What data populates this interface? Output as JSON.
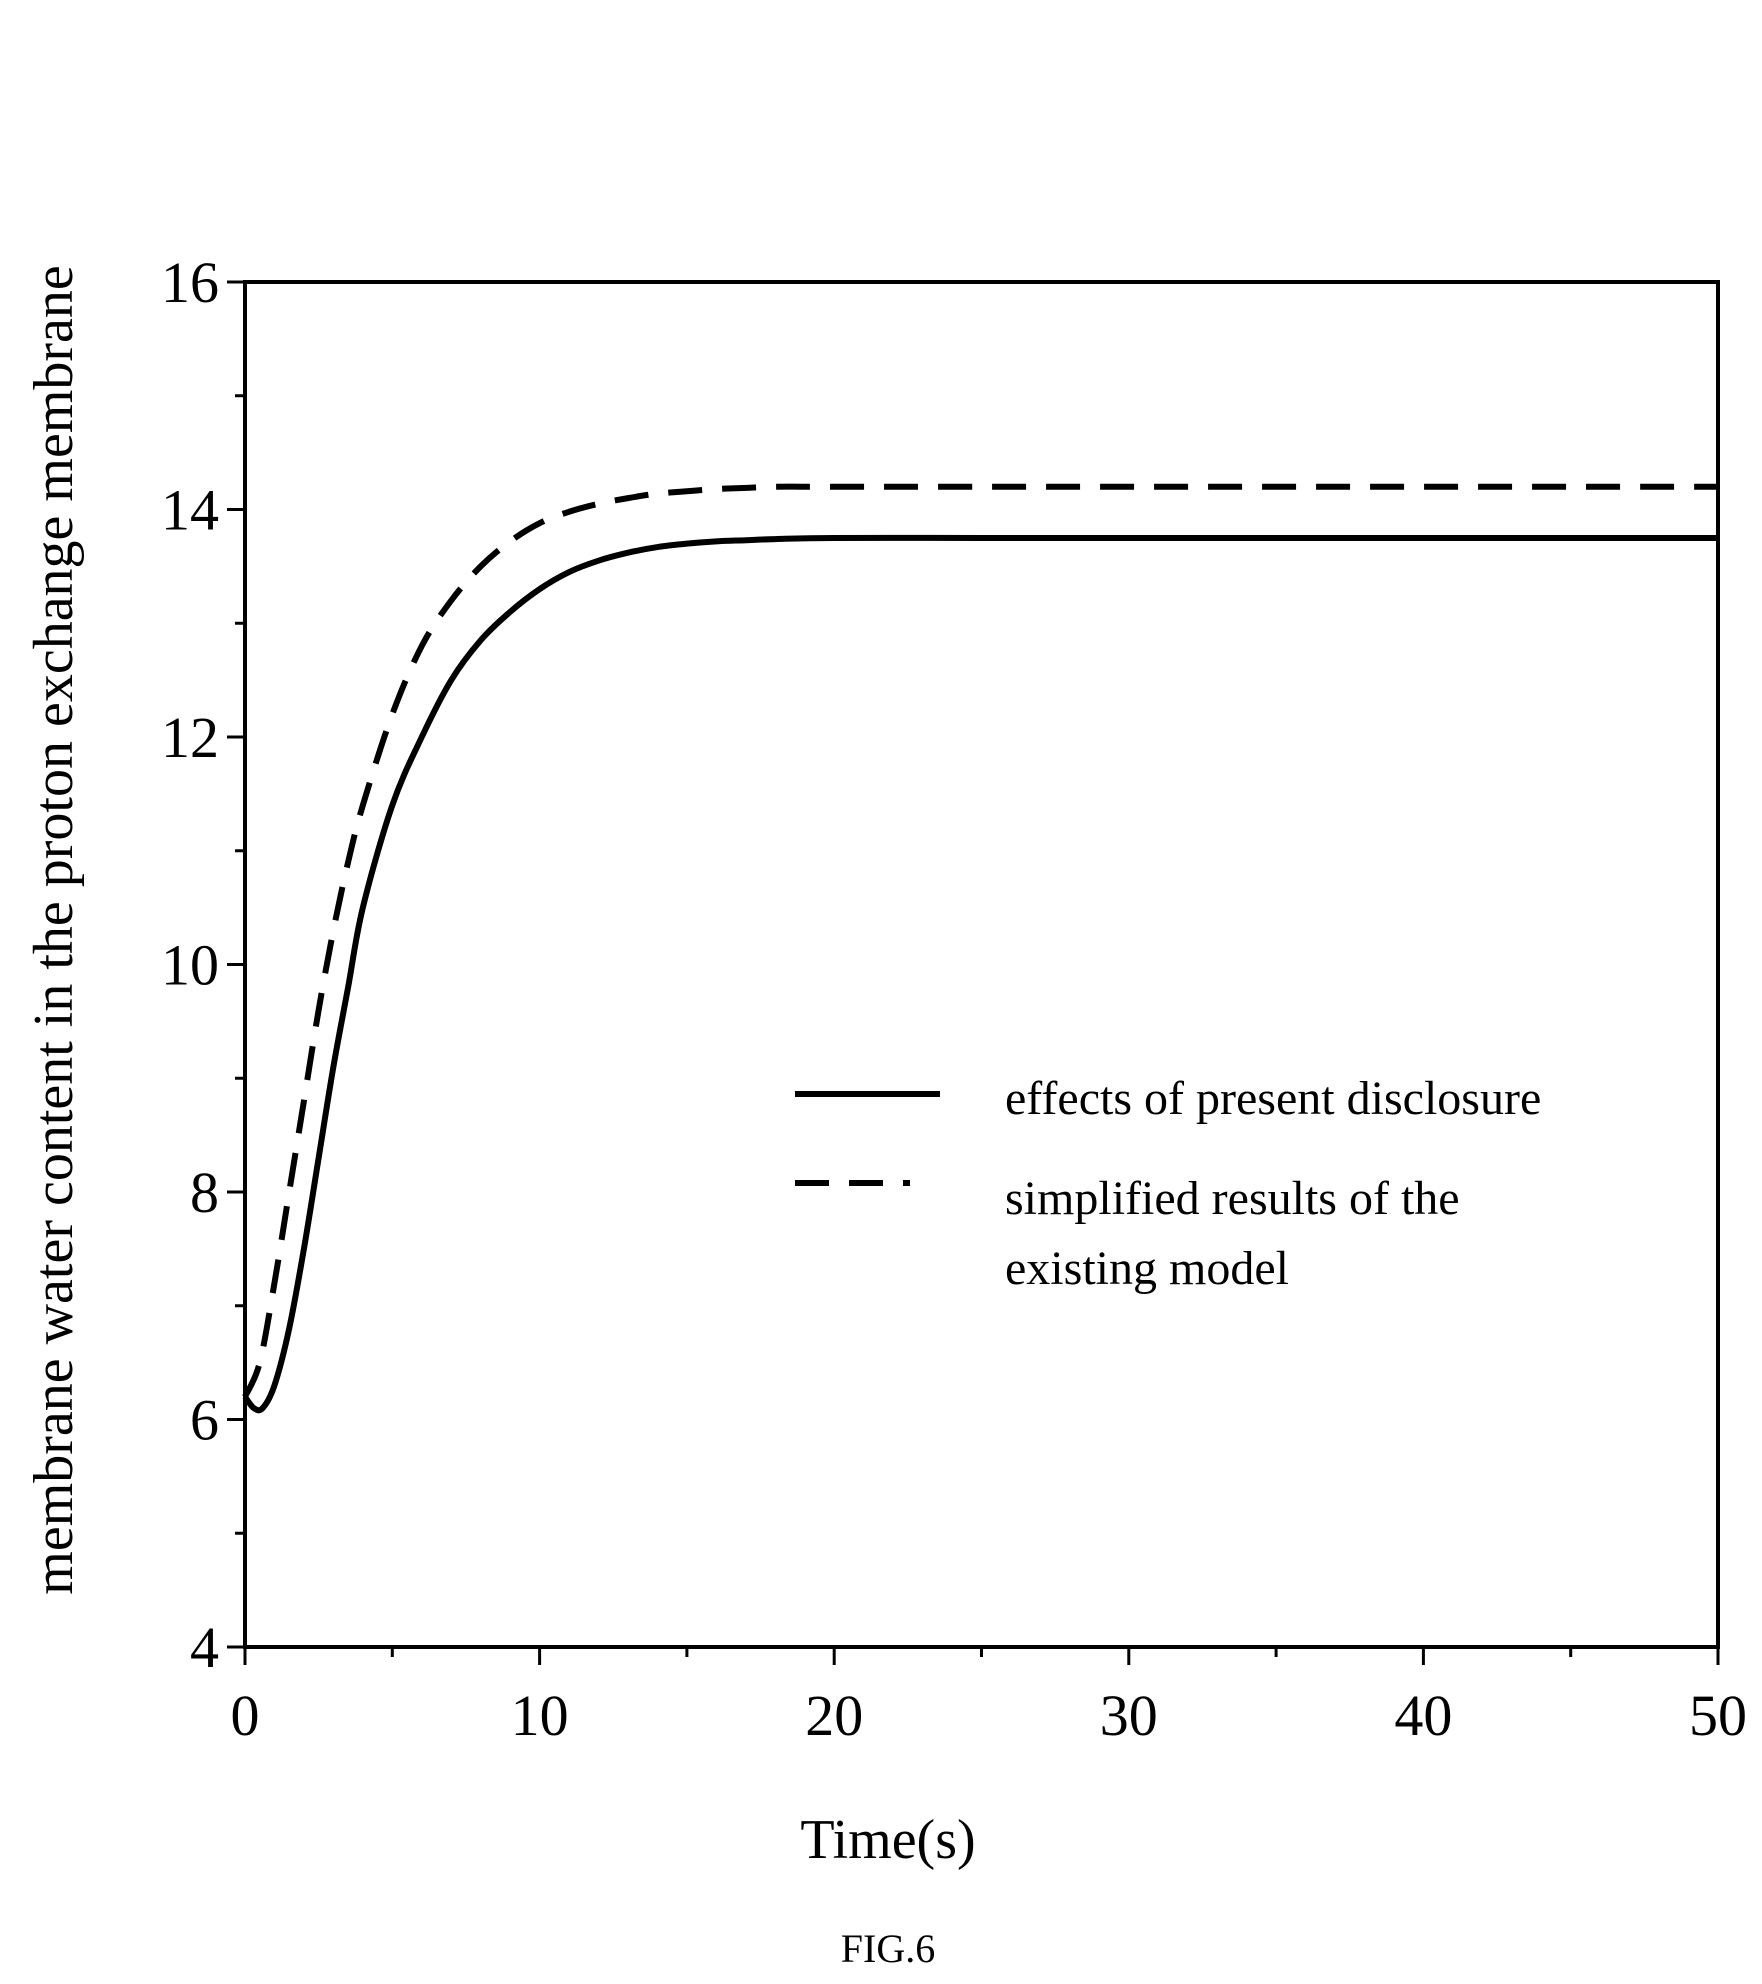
{
  "chart_data": {
    "type": "line",
    "title": "",
    "xlabel": "Time(s)",
    "ylabel": "membrane water content in the proton exchange membrane",
    "xlim": [
      0,
      50
    ],
    "ylim": [
      4,
      16
    ],
    "x_ticks": [
      0,
      10,
      20,
      30,
      40,
      50
    ],
    "y_ticks": [
      4,
      6,
      8,
      10,
      12,
      14,
      16
    ],
    "x_tick_labels": [
      "0",
      "10",
      "20",
      "30",
      "40",
      "50"
    ],
    "y_tick_labels": [
      "4",
      "6",
      "8",
      "10",
      "12",
      "14",
      "16"
    ],
    "grid": false,
    "legend_position": "center-right",
    "series": [
      {
        "name": "effects of present disclosure",
        "style": "solid",
        "x": [
          0,
          0.3,
          0.6,
          1,
          1.5,
          2,
          2.5,
          3,
          3.5,
          4,
          5,
          6,
          7,
          8,
          9,
          10,
          11,
          12,
          13,
          14,
          15,
          16,
          17,
          18,
          20,
          25,
          30,
          35,
          40,
          45,
          50
        ],
        "y": [
          6.2,
          6.1,
          6.1,
          6.3,
          6.8,
          7.5,
          8.3,
          9.1,
          9.8,
          10.5,
          11.4,
          12.0,
          12.5,
          12.85,
          13.1,
          13.3,
          13.45,
          13.55,
          13.62,
          13.67,
          13.7,
          13.72,
          13.73,
          13.74,
          13.75,
          13.75,
          13.75,
          13.75,
          13.75,
          13.75,
          13.75
        ]
      },
      {
        "name": "simplified results of the existing model",
        "style": "dashed",
        "x": [
          0,
          0.5,
          1,
          1.5,
          2,
          2.5,
          3,
          3.5,
          4,
          5,
          6,
          7,
          8,
          9,
          10,
          11,
          12,
          13,
          14,
          15,
          16,
          17,
          18,
          20,
          25,
          30,
          35,
          40,
          45,
          50
        ],
        "y": [
          6.2,
          6.5,
          7.2,
          8.0,
          8.8,
          9.6,
          10.3,
          10.9,
          11.4,
          12.2,
          12.8,
          13.2,
          13.5,
          13.72,
          13.88,
          13.98,
          14.05,
          14.1,
          14.14,
          14.16,
          14.18,
          14.19,
          14.2,
          14.2,
          14.2,
          14.2,
          14.2,
          14.2,
          14.2,
          14.2
        ]
      }
    ],
    "legend": {
      "entry1_line1": "effects of present disclosure",
      "entry2_line1": "simplified results of the",
      "entry2_line2": "existing model"
    }
  },
  "caption": "FIG.6"
}
